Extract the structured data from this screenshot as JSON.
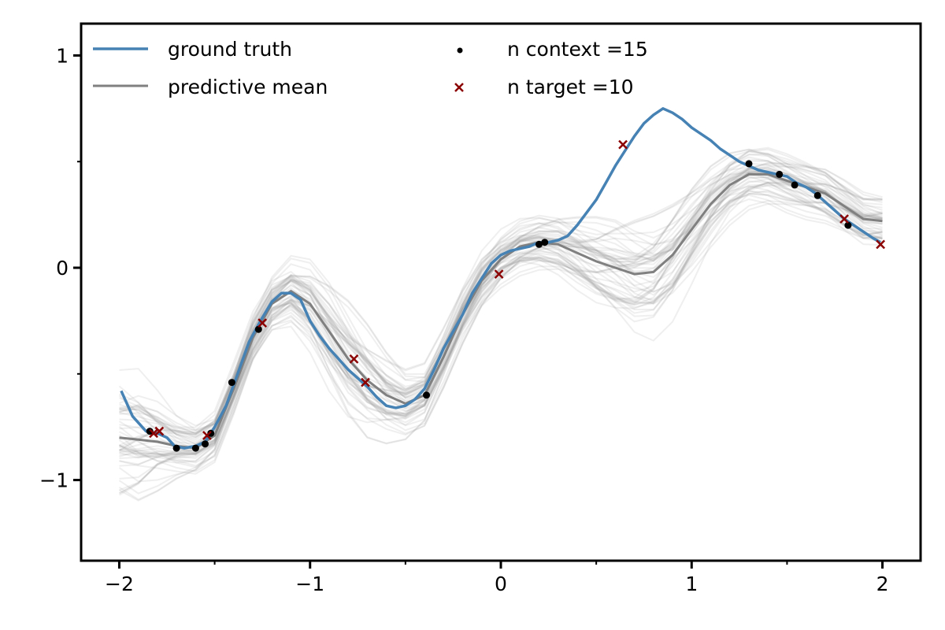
{
  "chart_data": {
    "type": "line",
    "title": "",
    "xlabel": "",
    "ylabel": "",
    "xlim": [
      -2.2,
      2.2
    ],
    "ylim": [
      -1.38,
      1.15
    ],
    "x_ticks": [
      -2,
      -1,
      0,
      1,
      2
    ],
    "x_tick_labels": [
      "−2",
      "−1",
      "0",
      "1",
      "2"
    ],
    "y_ticks": [
      -1,
      0,
      1
    ],
    "y_tick_labels": [
      "−1",
      "0",
      "1"
    ],
    "grid": false,
    "legend_position": "top",
    "colors": {
      "ground_truth": "#4682b4",
      "predictive_mean": "#808080",
      "samples": "#9e9e9e",
      "context": "#000000",
      "target": "#8b0000"
    },
    "legend": {
      "ground_truth": "ground truth",
      "predictive_mean": "predictive mean",
      "context": "n context =15",
      "target": "n target =10"
    },
    "ground_truth": {
      "x": [
        -1.99,
        -1.93,
        -1.86,
        -1.8,
        -1.75,
        -1.71,
        -1.66,
        -1.6,
        -1.55,
        -1.5,
        -1.44,
        -1.38,
        -1.32,
        -1.26,
        -1.2,
        -1.15,
        -1.1,
        -1.05,
        -1.0,
        -0.95,
        -0.9,
        -0.85,
        -0.8,
        -0.75,
        -0.7,
        -0.65,
        -0.6,
        -0.55,
        -0.5,
        -0.45,
        -0.4,
        -0.35,
        -0.3,
        -0.25,
        -0.2,
        -0.15,
        -0.1,
        -0.05,
        0.0,
        0.05,
        0.1,
        0.15,
        0.2,
        0.25,
        0.3,
        0.35,
        0.4,
        0.45,
        0.5,
        0.55,
        0.6,
        0.65,
        0.7,
        0.75,
        0.8,
        0.85,
        0.9,
        0.95,
        1.0,
        1.05,
        1.1,
        1.15,
        1.2,
        1.25,
        1.3,
        1.35,
        1.4,
        1.45,
        1.5,
        1.55,
        1.6,
        1.65,
        1.7,
        1.75,
        1.8,
        1.85,
        1.9,
        1.95,
        1.99
      ],
      "y": [
        -0.58,
        -0.7,
        -0.77,
        -0.78,
        -0.8,
        -0.84,
        -0.85,
        -0.84,
        -0.82,
        -0.75,
        -0.65,
        -0.5,
        -0.35,
        -0.25,
        -0.16,
        -0.12,
        -0.12,
        -0.15,
        -0.25,
        -0.32,
        -0.38,
        -0.43,
        -0.48,
        -0.52,
        -0.56,
        -0.61,
        -0.65,
        -0.66,
        -0.65,
        -0.62,
        -0.57,
        -0.48,
        -0.38,
        -0.3,
        -0.22,
        -0.12,
        -0.05,
        0.02,
        0.06,
        0.08,
        0.09,
        0.1,
        0.12,
        0.12,
        0.13,
        0.15,
        0.2,
        0.26,
        0.32,
        0.4,
        0.48,
        0.55,
        0.62,
        0.68,
        0.72,
        0.75,
        0.73,
        0.7,
        0.66,
        0.63,
        0.6,
        0.56,
        0.53,
        0.5,
        0.48,
        0.46,
        0.45,
        0.44,
        0.43,
        0.4,
        0.38,
        0.35,
        0.31,
        0.27,
        0.23,
        0.2,
        0.17,
        0.14,
        0.12
      ]
    },
    "predictive_mean": {
      "x": [
        -2.0,
        -1.9,
        -1.8,
        -1.7,
        -1.6,
        -1.5,
        -1.4,
        -1.3,
        -1.2,
        -1.1,
        -1.0,
        -0.9,
        -0.8,
        -0.7,
        -0.6,
        -0.5,
        -0.4,
        -0.3,
        -0.2,
        -0.1,
        0.0,
        0.1,
        0.2,
        0.3,
        0.4,
        0.5,
        0.6,
        0.7,
        0.8,
        0.9,
        1.0,
        1.1,
        1.2,
        1.3,
        1.4,
        1.5,
        1.6,
        1.7,
        1.8,
        1.9,
        2.0
      ],
      "y": [
        -0.8,
        -0.81,
        -0.82,
        -0.84,
        -0.85,
        -0.79,
        -0.57,
        -0.33,
        -0.17,
        -0.11,
        -0.17,
        -0.3,
        -0.43,
        -0.53,
        -0.6,
        -0.64,
        -0.6,
        -0.42,
        -0.22,
        -0.06,
        0.04,
        0.1,
        0.12,
        0.11,
        0.07,
        0.03,
        0.0,
        -0.03,
        -0.02,
        0.06,
        0.18,
        0.3,
        0.39,
        0.44,
        0.44,
        0.41,
        0.38,
        0.35,
        0.29,
        0.23,
        0.22
      ]
    },
    "context_points": {
      "x": [
        -1.84,
        -1.7,
        -1.6,
        -1.55,
        -1.52,
        -1.41,
        -1.27,
        -0.39,
        0.2,
        0.23,
        1.3,
        1.46,
        1.54,
        1.66,
        1.82
      ],
      "y": [
        -0.77,
        -0.85,
        -0.85,
        -0.83,
        -0.78,
        -0.54,
        -0.29,
        -0.6,
        0.11,
        0.12,
        0.49,
        0.44,
        0.39,
        0.34,
        0.2
      ]
    },
    "target_points": {
      "x": [
        -1.82,
        -1.79,
        -1.54,
        -1.25,
        -0.77,
        -0.71,
        -0.01,
        0.64,
        1.8,
        1.99
      ],
      "y": [
        -0.78,
        -0.77,
        -0.79,
        -0.26,
        -0.43,
        -0.54,
        -0.03,
        0.58,
        0.23,
        0.11
      ]
    }
  }
}
